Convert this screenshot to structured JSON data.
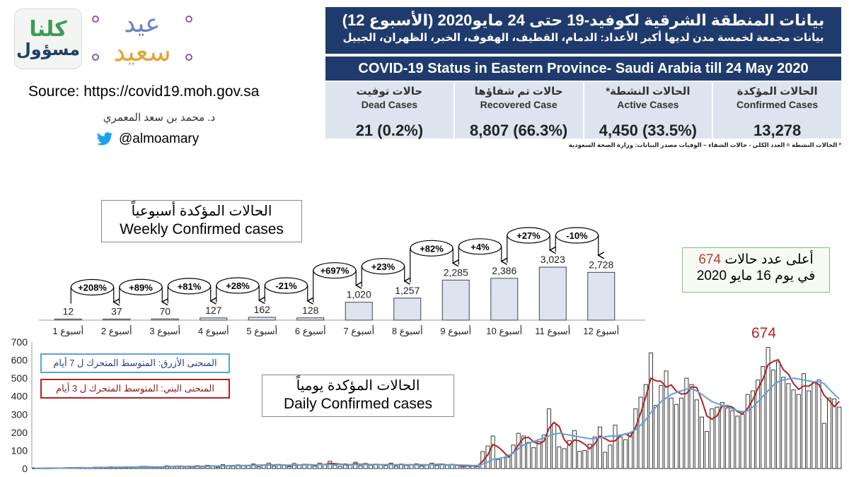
{
  "logos": {
    "kulna_line1": "كلنا",
    "kulna_line2": "مسؤول",
    "eid_line1": "عيد",
    "eid_line2": "سعيد"
  },
  "source_text": "Source: https://covid19.moh.gov.sa",
  "author_name": "د. محمد بن سعد المعمري",
  "twitter_handle": "@almoamary",
  "header": {
    "title_ar": "بيانات المنطقة الشرقية لكوفيد-19 حتى 24 مايو2020 (الأسبوع 12)",
    "subtitle_ar": "بيانات مجمعة لخمسة مدن لديها أكبر الأعداد: الدمام، القطيف، الهفوف، الخبر، الظهران، الجبيل",
    "title_en": "COVID-19 Status in Eastern Province- Saudi Arabia till 24 May 2020"
  },
  "stats": [
    {
      "ar": "الحالات المؤكدة",
      "en": "Confirmed Cases",
      "value": "13,278"
    },
    {
      "ar": "الحالات النشطة*",
      "en": "Active Cases",
      "value": "4,450 (33.5%)"
    },
    {
      "ar": "حالات تم شفاؤها",
      "en": "Recovered Case",
      "value": "8,807 (66.3%)"
    },
    {
      "ar": "حالات توفيت",
      "en": "Dead Cases",
      "value": "21 (0.2%)"
    }
  ],
  "footnote": "* الحالات النشطة = العدد الكلي - حالات الشفاء – الوفيات      مصدر البيانات: وزارة الصحة السعودية",
  "weekly_title_ar": "الحالات المؤكدة أسبوعياً",
  "weekly_title_en": "Weekly Confirmed cases",
  "peak_box": {
    "prefix": "أعلى عدد حالات",
    "value": "674",
    "line2": "في يوم 16 مايو 2020"
  },
  "daily_title_ar": "الحالات المؤكدة يومياً",
  "daily_title_en": "Daily Confirmed cases",
  "legend_blue": "المنحنى الأزرق: المتوسط المتحرك ل 7 أيام",
  "legend_red": "المنحنى البني: المتوسط المتحرك ل 3 أيام",
  "daily_peak_label": "674",
  "colors": {
    "navy": "#1f3b6e",
    "bar_fill": "#dde4ef",
    "blue_line": "#5ba3d8",
    "red_line": "#b22222"
  },
  "chart_data": [
    {
      "type": "bar",
      "title": "Weekly Confirmed cases",
      "categories": [
        "أسبوع 1",
        "أسبوع 2",
        "أسبوع 3",
        "أسبوع 4",
        "أسبوع 5",
        "أسبوع 6",
        "أسبوع 7",
        "أسبوع 8",
        "أسبوع 9",
        "أسبوع 10",
        "أسبوع 11",
        "أسبوع 12"
      ],
      "values": [
        12,
        37,
        70,
        127,
        162,
        128,
        1020,
        1257,
        2285,
        2386,
        3023,
        2728
      ],
      "value_labels": [
        "12",
        "37",
        "70",
        "127",
        "162",
        "128",
        "1,020",
        "1,257",
        "2,285",
        "2,386",
        "3,023",
        "2,728"
      ],
      "changes": [
        "+208%",
        "+89%",
        "+81%",
        "+28%",
        "-21%",
        "+697%",
        "+23%",
        "+82%",
        "+4%",
        "+27%",
        "-10%"
      ],
      "ylim": [
        0,
        3100
      ]
    },
    {
      "type": "bar",
      "title": "Daily Confirmed cases",
      "yticks": [
        "0",
        "100",
        "200",
        "300",
        "400",
        "500",
        "600",
        "700"
      ],
      "ylim": [
        0,
        700
      ],
      "values": [
        0,
        0,
        0,
        2,
        3,
        2,
        4,
        5,
        3,
        6,
        2,
        5,
        8,
        4,
        6,
        9,
        5,
        7,
        10,
        6,
        8,
        12,
        9,
        6,
        10,
        7,
        15,
        12,
        9,
        14,
        11,
        8,
        16,
        10,
        18,
        13,
        7,
        22,
        15,
        12,
        20,
        16,
        14,
        25,
        10,
        18,
        30,
        12,
        22,
        16,
        10,
        28,
        18,
        24,
        20,
        14,
        30,
        22,
        40,
        18,
        12,
        26,
        20,
        35,
        15,
        28,
        18,
        24,
        22,
        16,
        30,
        12,
        25,
        18,
        20,
        26,
        14,
        22,
        30,
        16,
        25,
        18,
        22,
        16,
        8,
        20,
        14,
        10,
        94,
        125,
        180,
        50,
        60,
        75,
        130,
        195,
        180,
        145,
        115,
        150,
        185,
        330,
        250,
        120,
        110,
        155,
        210,
        95,
        100,
        135,
        175,
        230,
        90,
        130,
        240,
        175,
        160,
        195,
        330,
        395,
        465,
        640,
        350,
        460,
        540,
        390,
        355,
        390,
        500,
        465,
        380,
        285,
        205,
        330,
        340,
        365,
        335,
        320,
        290,
        300,
        410,
        430,
        490,
        565,
        670,
        545,
        590,
        505,
        470,
        435,
        410,
        525,
        430,
        475,
        490,
        250,
        390,
        385,
        340
      ],
      "moving_average_7": [
        0,
        0,
        0,
        1,
        1,
        2,
        2,
        3,
        3,
        4,
        4,
        4,
        5,
        5,
        6,
        6,
        6,
        7,
        7,
        7,
        8,
        8,
        8,
        9,
        9,
        9,
        10,
        11,
        11,
        11,
        12,
        12,
        12,
        13,
        13,
        14,
        14,
        14,
        15,
        15,
        16,
        16,
        16,
        17,
        17,
        18,
        18,
        19,
        19,
        19,
        19,
        20,
        20,
        20,
        20,
        20,
        21,
        21,
        22,
        22,
        22,
        22,
        22,
        22,
        22,
        22,
        22,
        22,
        21,
        21,
        21,
        21,
        21,
        21,
        21,
        21,
        21,
        21,
        21,
        21,
        21,
        20,
        20,
        20,
        19,
        18,
        17,
        17,
        25,
        35,
        50,
        55,
        60,
        70,
        85,
        110,
        130,
        140,
        150,
        160,
        170,
        180,
        190,
        195,
        190,
        185,
        180,
        175,
        170,
        165,
        165,
        170,
        175,
        180,
        180,
        185,
        190,
        200,
        215,
        240,
        270,
        310,
        340,
        370,
        390,
        410,
        420,
        430,
        440,
        440,
        430,
        410,
        390,
        370,
        360,
        350,
        340,
        330,
        320,
        315,
        320,
        340,
        370,
        400,
        430,
        460,
        480,
        490,
        495,
        500,
        495,
        490,
        485,
        480,
        480,
        470,
        440,
        410,
        385
      ],
      "moving_average_3": [
        0,
        0,
        0,
        1,
        2,
        2,
        3,
        4,
        4,
        5,
        4,
        4,
        5,
        6,
        6,
        7,
        7,
        7,
        7,
        8,
        8,
        9,
        10,
        9,
        8,
        8,
        11,
        11,
        12,
        12,
        11,
        11,
        12,
        11,
        15,
        14,
        13,
        14,
        15,
        16,
        16,
        16,
        17,
        18,
        18,
        19,
        20,
        20,
        21,
        19,
        16,
        18,
        19,
        22,
        21,
        19,
        22,
        22,
        28,
        27,
        24,
        20,
        20,
        27,
        23,
        26,
        20,
        23,
        21,
        21,
        23,
        19,
        22,
        18,
        21,
        21,
        20,
        20,
        22,
        23,
        23,
        20,
        22,
        19,
        15,
        15,
        14,
        15,
        40,
        76,
        133,
        120,
        95,
        62,
        88,
        130,
        168,
        173,
        147,
        137,
        150,
        222,
        255,
        233,
        160,
        128,
        158,
        153,
        135,
        110,
        137,
        180,
        165,
        150,
        153,
        182,
        192,
        176,
        228,
        307,
        397,
        500,
        485,
        483,
        450,
        463,
        428,
        412,
        415,
        452,
        448,
        377,
        290,
        273,
        292,
        345,
        347,
        340,
        315,
        303,
        333,
        380,
        443,
        495,
        575,
        593,
        602,
        547,
        522,
        470,
        438,
        457,
        455,
        477,
        465,
        405,
        377,
        342,
        372
      ]
    }
  ]
}
